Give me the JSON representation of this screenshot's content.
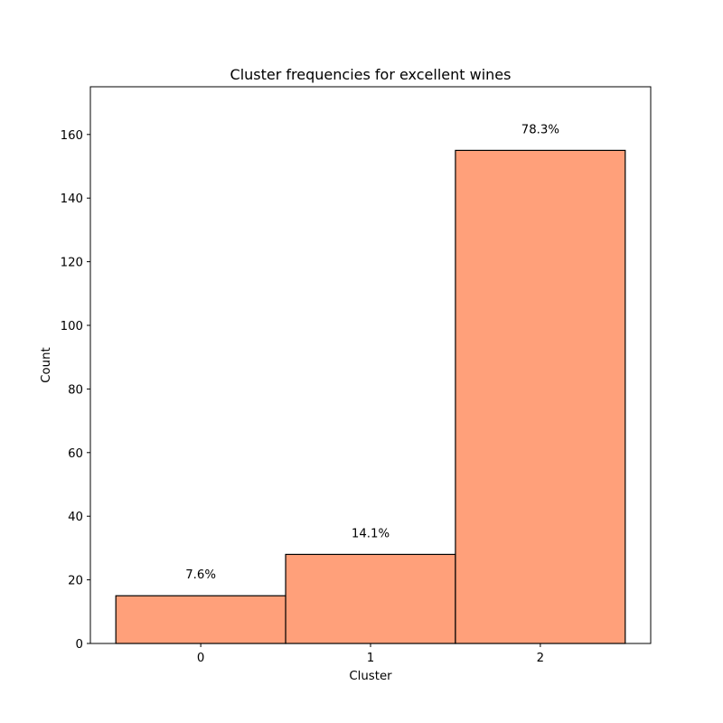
{
  "chart_data": {
    "type": "bar",
    "title": "Cluster frequencies for excellent wines",
    "xlabel": "Cluster",
    "ylabel": "Count",
    "categories": [
      "0",
      "1",
      "2"
    ],
    "values": [
      15,
      28,
      155
    ],
    "data_labels": [
      "7.6%",
      "14.1%",
      "78.3%"
    ],
    "ylim": [
      0,
      175
    ],
    "xlim": [
      -0.65,
      2.65
    ],
    "yticks": [
      0,
      20,
      40,
      60,
      80,
      100,
      120,
      140,
      160
    ],
    "bar_width": 1.0,
    "grid": false,
    "legend": "none",
    "colors": {
      "bar_fill": "#FFA07A",
      "bar_edge": "#000000",
      "axis": "#000000"
    }
  }
}
